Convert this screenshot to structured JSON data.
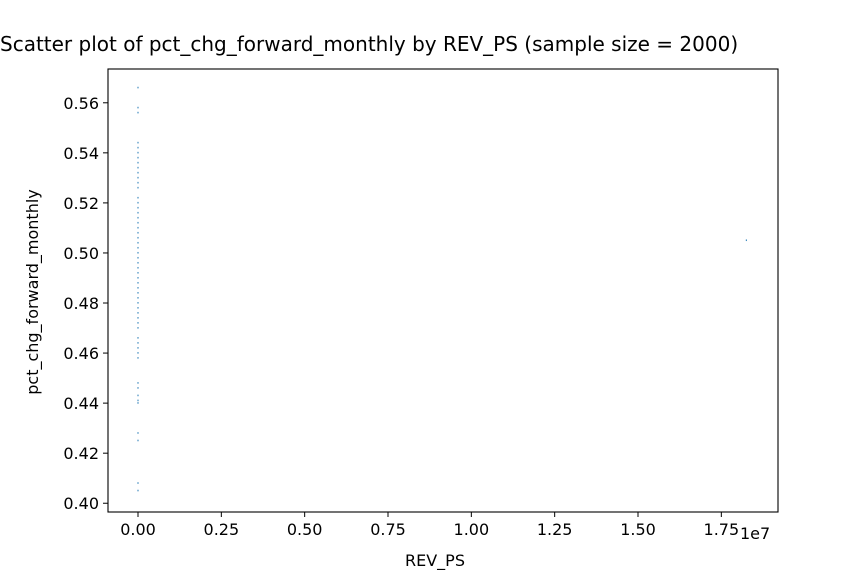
{
  "chart_data": {
    "type": "scatter",
    "title": "Scatter plot of pct_chg_forward_monthly by REV_PS (sample size = 2000)",
    "xlabel": "REV_PS",
    "ylabel": "pct_chg_forward_monthly",
    "x_scale_label": "1e7",
    "xlim": [
      -0.09,
      1.92
    ],
    "ylim": [
      0.3965,
      0.5735
    ],
    "x_unit_multiplier": 10000000,
    "xticks": [
      0.0,
      0.25,
      0.5,
      0.75,
      1.0,
      1.25,
      1.5,
      1.75
    ],
    "xtick_labels": [
      "0.00",
      "0.25",
      "0.50",
      "0.75",
      "1.00",
      "1.25",
      "1.50",
      "1.75"
    ],
    "yticks": [
      0.4,
      0.42,
      0.44,
      0.46,
      0.48,
      0.5,
      0.52,
      0.54,
      0.56
    ],
    "ytick_labels": [
      "0.40",
      "0.42",
      "0.44",
      "0.46",
      "0.48",
      "0.50",
      "0.52",
      "0.54",
      "0.56"
    ],
    "grid": false,
    "marker_color": "#1f77b4",
    "series": [
      {
        "points": [
          [
            0,
            0.566
          ],
          [
            0,
            0.558
          ],
          [
            0,
            0.556
          ],
          [
            0,
            0.544
          ],
          [
            0,
            0.542
          ],
          [
            0,
            0.54
          ],
          [
            0,
            0.538
          ],
          [
            0,
            0.536
          ],
          [
            0,
            0.534
          ],
          [
            0,
            0.532
          ],
          [
            0,
            0.53
          ],
          [
            0,
            0.528
          ],
          [
            0,
            0.526
          ],
          [
            0,
            0.522
          ],
          [
            0,
            0.52
          ],
          [
            0,
            0.518
          ],
          [
            0,
            0.516
          ],
          [
            0,
            0.514
          ],
          [
            0,
            0.512
          ],
          [
            0,
            0.51
          ],
          [
            0,
            0.508
          ],
          [
            0,
            0.506
          ],
          [
            0,
            0.504
          ],
          [
            0,
            0.502
          ],
          [
            0,
            0.5
          ],
          [
            0,
            0.498
          ],
          [
            0,
            0.496
          ],
          [
            0,
            0.494
          ],
          [
            0,
            0.492
          ],
          [
            0,
            0.49
          ],
          [
            0,
            0.488
          ],
          [
            0,
            0.486
          ],
          [
            0,
            0.484
          ],
          [
            0,
            0.482
          ],
          [
            0,
            0.48
          ],
          [
            0,
            0.478
          ],
          [
            0,
            0.476
          ],
          [
            0,
            0.474
          ],
          [
            0,
            0.472
          ],
          [
            0,
            0.47
          ],
          [
            0,
            0.466
          ],
          [
            0,
            0.464
          ],
          [
            0,
            0.462
          ],
          [
            0,
            0.46
          ],
          [
            0,
            0.458
          ],
          [
            0,
            0.448
          ],
          [
            0,
            0.446
          ],
          [
            0,
            0.443
          ],
          [
            0,
            0.441
          ],
          [
            0,
            0.44
          ],
          [
            0,
            0.428
          ],
          [
            0,
            0.425
          ],
          [
            0,
            0.408
          ],
          [
            0,
            0.405
          ],
          [
            1.825,
            0.505
          ]
        ]
      }
    ]
  }
}
